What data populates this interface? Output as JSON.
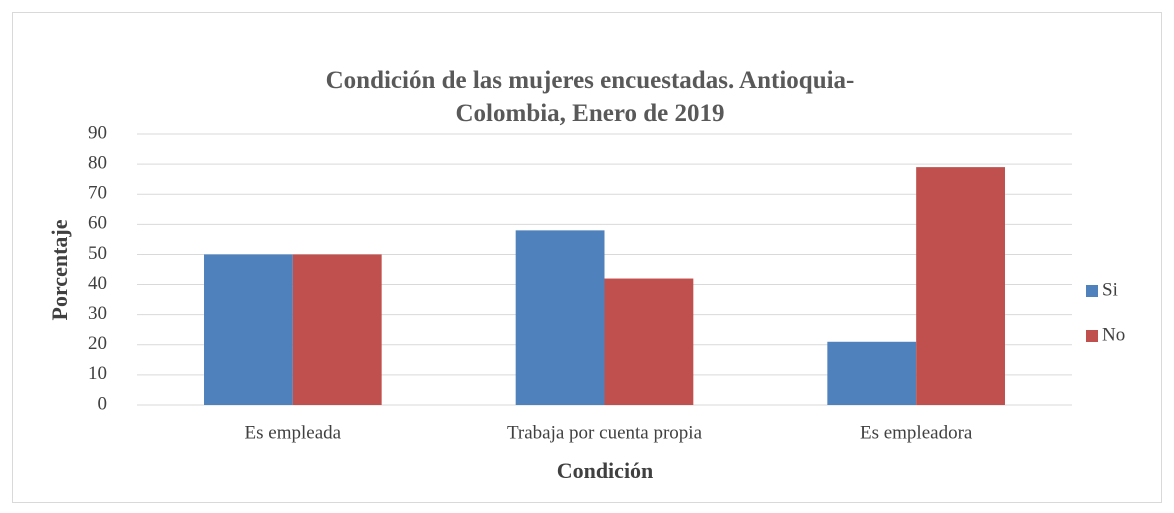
{
  "chart_data": {
    "type": "bar",
    "title": "Condición de las mujeres encuestadas. Antioquia-Colombia, Enero de 2019",
    "x_label": "Condición",
    "y_label": "Porcentaje",
    "categories": [
      "Es empleada",
      "Trabaja por cuenta propia",
      "Es empleadora"
    ],
    "series": [
      {
        "name": "Si",
        "color": "#4f81bd",
        "values": [
          50,
          58,
          21
        ]
      },
      {
        "name": "No",
        "color": "#c0504d",
        "values": [
          50,
          42,
          79
        ]
      }
    ],
    "ylim": [
      0,
      90
    ],
    "yticks": [
      0,
      10,
      20,
      30,
      40,
      50,
      60,
      70,
      80,
      90
    ],
    "grid": true,
    "legend": "right"
  }
}
